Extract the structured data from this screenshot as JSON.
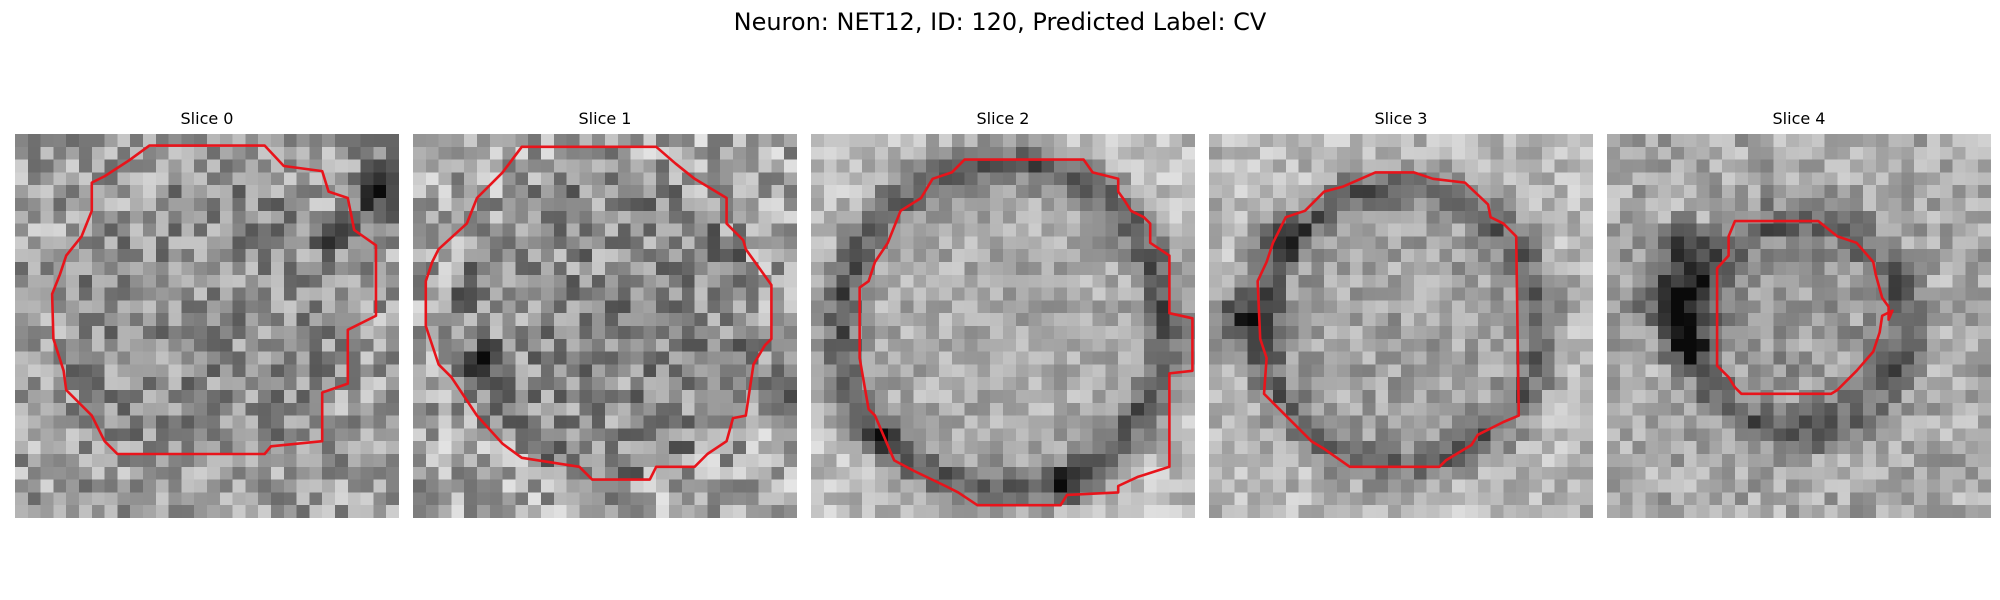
{
  "figure": {
    "title": "Neuron: NET12, ID: 120, Predicted Label: CV"
  },
  "colors": {
    "contour": "#e8141b",
    "background": "#ffffff"
  },
  "image": {
    "grid_size": 30,
    "colormap": "grayscale"
  },
  "panels": [
    {
      "title": "Slice 0",
      "ring_radius": 0.38,
      "ring_contrast": 0.02,
      "center_brightness": 0.56,
      "outer_brightness": 0.62,
      "noise": 0.22,
      "contour": [
        [
          10.5,
          0.9
        ],
        [
          19.5,
          0.9
        ],
        [
          21,
          2.5
        ],
        [
          24,
          2.9
        ],
        [
          24.5,
          4.5
        ],
        [
          26,
          5
        ],
        [
          26.5,
          7.5
        ],
        [
          28.2,
          8.7
        ],
        [
          28.2,
          14.2
        ],
        [
          26,
          15.3
        ],
        [
          26,
          19.5
        ],
        [
          24,
          20.2
        ],
        [
          24,
          24
        ],
        [
          20,
          24.4
        ],
        [
          19.5,
          25
        ],
        [
          8,
          25
        ],
        [
          7,
          24
        ],
        [
          6,
          22
        ],
        [
          4,
          20
        ],
        [
          3.8,
          18.5
        ],
        [
          3,
          16
        ],
        [
          2.9,
          12.5
        ],
        [
          3.5,
          11
        ],
        [
          4,
          9.5
        ],
        [
          5.2,
          8
        ],
        [
          6,
          6
        ],
        [
          6,
          3.8
        ],
        [
          7,
          3.3
        ],
        [
          9,
          2
        ]
      ],
      "dark_spots": [
        [
          28.5,
          4.5,
          2.3
        ],
        [
          24.6,
          7.5,
          1.2
        ]
      ]
    },
    {
      "title": "Slice 1",
      "ring_radius": 0.4,
      "ring_contrast": 0.05,
      "center_brightness": 0.55,
      "outer_brightness": 0.66,
      "noise": 0.24,
      "contour": [
        [
          8.5,
          1
        ],
        [
          19,
          1
        ],
        [
          20.5,
          2.3
        ],
        [
          22,
          3.5
        ],
        [
          24.5,
          5
        ],
        [
          24.5,
          7
        ],
        [
          25.8,
          8.3
        ],
        [
          26,
          9
        ],
        [
          28,
          11.8
        ],
        [
          28,
          16
        ],
        [
          27.5,
          16.5
        ],
        [
          26.6,
          18
        ],
        [
          26,
          22
        ],
        [
          25,
          22.2
        ],
        [
          24.5,
          24
        ],
        [
          23,
          25
        ],
        [
          22,
          26
        ],
        [
          19,
          26
        ],
        [
          18.5,
          27
        ],
        [
          14,
          27
        ],
        [
          13,
          26
        ],
        [
          8.5,
          25.3
        ],
        [
          7,
          24.2
        ],
        [
          5,
          22
        ],
        [
          3,
          19
        ],
        [
          2,
          18
        ],
        [
          1,
          15
        ],
        [
          1,
          11.5
        ],
        [
          1.5,
          10
        ],
        [
          2,
          9
        ],
        [
          4.2,
          7
        ],
        [
          5,
          5
        ],
        [
          7,
          3
        ]
      ],
      "dark_spots": [
        [
          27.8,
          19.4,
          1.6
        ],
        [
          5.2,
          17.2,
          1.2
        ]
      ]
    },
    {
      "title": "Slice 2",
      "ring_radius": 0.43,
      "ring_contrast": 0.35,
      "center_brightness": 0.67,
      "outer_brightness": 0.74,
      "noise": 0.14,
      "contour": [
        [
          12,
          2
        ],
        [
          21.3,
          2
        ],
        [
          22,
          3
        ],
        [
          24,
          3.5
        ],
        [
          24,
          4.5
        ],
        [
          24.5,
          5.2
        ],
        [
          25,
          6
        ],
        [
          26,
          6.5
        ],
        [
          26.5,
          7
        ],
        [
          26.5,
          8.5
        ],
        [
          28,
          9.5
        ],
        [
          28,
          14
        ],
        [
          29.8,
          14.4
        ],
        [
          29.8,
          18.5
        ],
        [
          28,
          18.7
        ],
        [
          28,
          26
        ],
        [
          25.5,
          26.8
        ],
        [
          24,
          27.5
        ],
        [
          24,
          28
        ],
        [
          20,
          28.2
        ],
        [
          19.5,
          29
        ],
        [
          13,
          29
        ],
        [
          11.5,
          28
        ],
        [
          10.5,
          27.5
        ],
        [
          8,
          26.3
        ],
        [
          6.5,
          25.5
        ],
        [
          5,
          22
        ],
        [
          4.5,
          21.5
        ],
        [
          3.8,
          17.5
        ],
        [
          3.8,
          12
        ],
        [
          4.5,
          11.5
        ],
        [
          5,
          10
        ],
        [
          6,
          8.5
        ],
        [
          7,
          6
        ],
        [
          8.6,
          5
        ],
        [
          9.5,
          3.5
        ],
        [
          11,
          3
        ]
      ],
      "dark_spots": [
        [
          19.4,
          27.2,
          1.1
        ],
        [
          5,
          23.5,
          1.0
        ]
      ]
    },
    {
      "title": "Slice 3",
      "ring_radius": 0.37,
      "ring_contrast": 0.28,
      "center_brightness": 0.64,
      "outer_brightness": 0.72,
      "noise": 0.15,
      "contour": [
        [
          13,
          3
        ],
        [
          16,
          3
        ],
        [
          17.5,
          3.5
        ],
        [
          20,
          3.8
        ],
        [
          21.8,
          5.5
        ],
        [
          22,
          6.5
        ],
        [
          23,
          7
        ],
        [
          24,
          8
        ],
        [
          24.2,
          22
        ],
        [
          23,
          22.5
        ],
        [
          21,
          23.5
        ],
        [
          20.5,
          24.3
        ],
        [
          18.5,
          25.5
        ],
        [
          18,
          26
        ],
        [
          11,
          26
        ],
        [
          9,
          24.6
        ],
        [
          8,
          24
        ],
        [
          5,
          21
        ],
        [
          4.3,
          20.3
        ],
        [
          4.5,
          17.5
        ],
        [
          4,
          16
        ],
        [
          3.8,
          11.5
        ],
        [
          4.5,
          10
        ],
        [
          5,
          8.5
        ],
        [
          6,
          6.5
        ],
        [
          7.5,
          6
        ],
        [
          9,
          4.5
        ],
        [
          10.5,
          4.1
        ]
      ],
      "dark_spots": [
        [
          2.2,
          14,
          2.3
        ],
        [
          5.4,
          7.5,
          1.4
        ]
      ]
    },
    {
      "title": "Slice 4",
      "ring_radius": 0.28,
      "ring_contrast": 0.25,
      "center_brightness": 0.6,
      "outer_brightness": 0.66,
      "noise": 0.16,
      "contour": [
        [
          10,
          6.8
        ],
        [
          16.5,
          6.8
        ],
        [
          18,
          8
        ],
        [
          19.5,
          8.5
        ],
        [
          20.8,
          10
        ],
        [
          21,
          11
        ],
        [
          21.5,
          12.8
        ],
        [
          22,
          13.5
        ],
        [
          22,
          14.5
        ],
        [
          22.3,
          13.8
        ],
        [
          21.5,
          14.2
        ],
        [
          21.3,
          15.5
        ],
        [
          20.8,
          17
        ],
        [
          19.5,
          18.5
        ],
        [
          18,
          20
        ],
        [
          17.5,
          20.3
        ],
        [
          10.5,
          20.3
        ],
        [
          10,
          19.8
        ],
        [
          9.5,
          19
        ],
        [
          8.6,
          18.1
        ],
        [
          8.6,
          10.5
        ],
        [
          9.5,
          9.5
        ],
        [
          9.5,
          8
        ]
      ],
      "dark_spots": [
        [
          4.5,
          12,
          2.7
        ],
        [
          5.5,
          8.5,
          1.6
        ],
        [
          5.5,
          16,
          1.5
        ]
      ]
    }
  ]
}
